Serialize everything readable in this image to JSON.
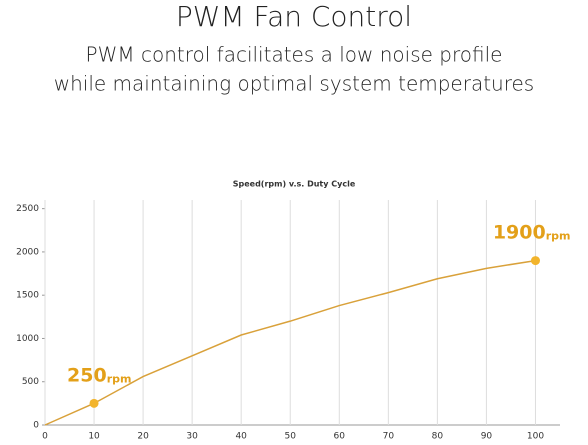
{
  "header": {
    "title": "PWM Fan Control",
    "subtitle_lines": [
      "PWM control facilitates a low noise profile",
      "while maintaining optimal system temperatures"
    ]
  },
  "chart_data": {
    "type": "line",
    "title": "Speed(rpm) v.s. Duty Cycle",
    "x": [
      0,
      10,
      20,
      30,
      40,
      50,
      60,
      70,
      80,
      90,
      100
    ],
    "values": [
      0,
      250,
      560,
      800,
      1040,
      1200,
      1380,
      1530,
      1690,
      1810,
      1900
    ],
    "color": "#d9a13a",
    "markers": [
      {
        "x": 10,
        "y": 250,
        "label": "250",
        "unit": "rpm"
      },
      {
        "x": 100,
        "y": 1900,
        "label": "1900",
        "unit": "rpm"
      }
    ],
    "marker_color": "#f2b42c",
    "label_color": "#e3a019",
    "xlim": [
      0,
      105
    ],
    "xticks": [
      0,
      10,
      20,
      30,
      40,
      50,
      60,
      70,
      80,
      90,
      100
    ],
    "ylim": [
      0,
      2600
    ],
    "yticks": [
      0,
      500,
      1000,
      1500,
      2000,
      2500
    ],
    "grid": "x"
  }
}
